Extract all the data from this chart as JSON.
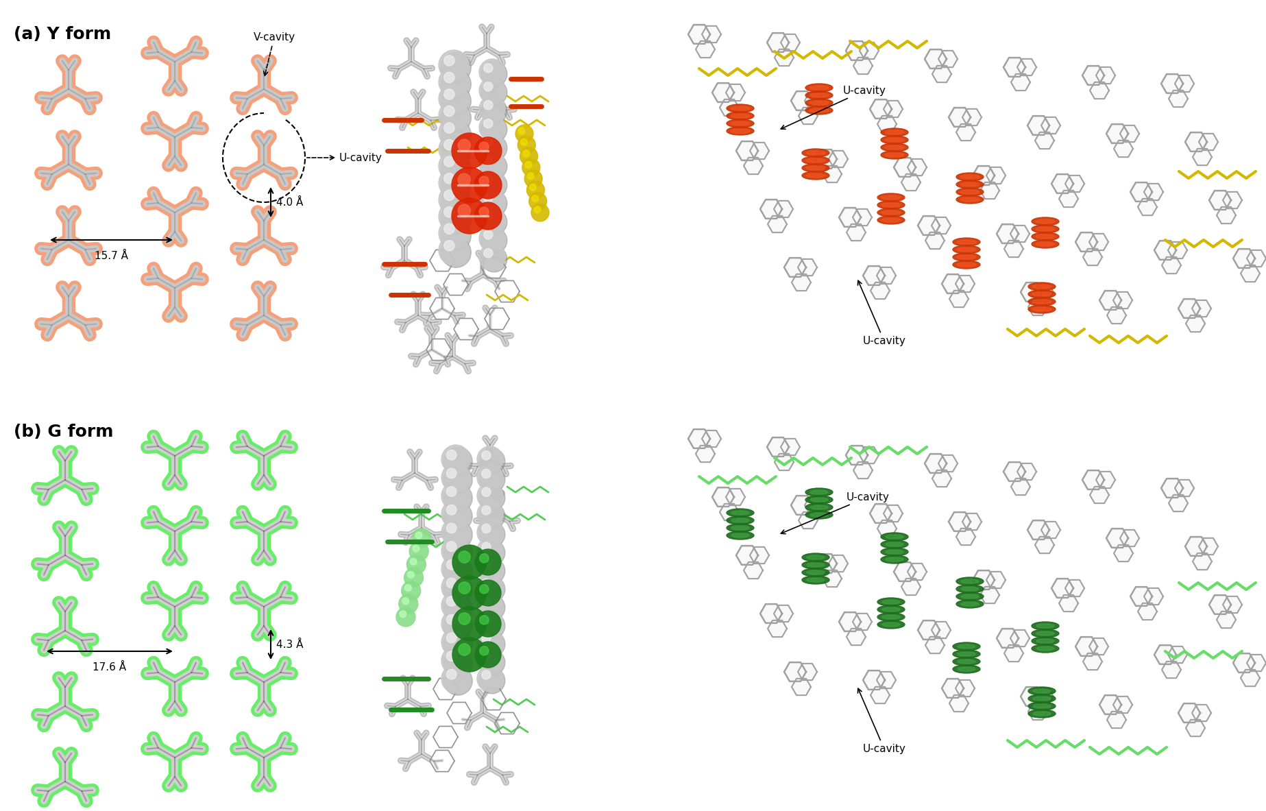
{
  "fig_width": 18.47,
  "fig_height": 11.83,
  "dpi": 100,
  "background_color": "#ffffff",
  "panel_a_label": "(a) Y form",
  "panel_b_label": "(b) G form",
  "label_fontsize": 18,
  "annotation_fontsize": 11,
  "y_glow_color": "#F4A07A",
  "y_stick_color": "#C8C8C8",
  "y_dark_color": "#505050",
  "y_form_orange": "#CC3300",
  "y_form_yellow": "#D4B800",
  "g_glow_color": "#66EE66",
  "g_stick_color": "#C8C8C8",
  "g_dark_color": "#505050",
  "g_form_dark_green": "#1A6B1A",
  "g_form_light_green": "#88DD88",
  "gray_sphere": "#C0C0C0",
  "dist_15_7": "15.7 Å",
  "dist_4_0": "4.0 Å",
  "dist_17_6": "17.6 Å",
  "dist_4_3": "4.3 Å",
  "v_cavity": "V-cavity",
  "u_cavity": "U-cavity"
}
